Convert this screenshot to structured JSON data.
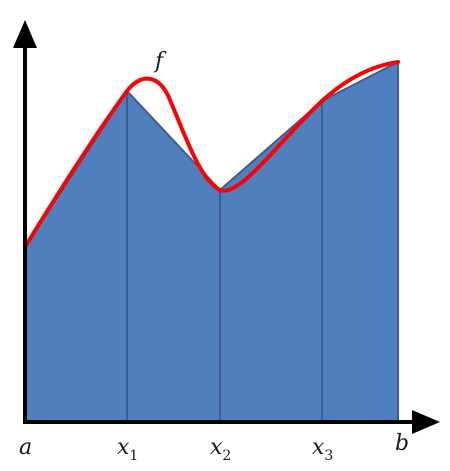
{
  "figure": {
    "function_label": "f",
    "x_labels": [
      {
        "name": "a",
        "base": "a",
        "sub": ""
      },
      {
        "name": "x1",
        "base": "x",
        "sub": "1"
      },
      {
        "name": "x2",
        "base": "x",
        "sub": "2"
      },
      {
        "name": "x3",
        "base": "x",
        "sub": "3"
      },
      {
        "name": "b",
        "base": "b",
        "sub": ""
      }
    ],
    "colors": {
      "trapezoid_fill": "#4f7fbd",
      "trapezoid_edge": "#3a5f8f",
      "curve": "#ff0000",
      "axes": "#000000"
    }
  }
}
